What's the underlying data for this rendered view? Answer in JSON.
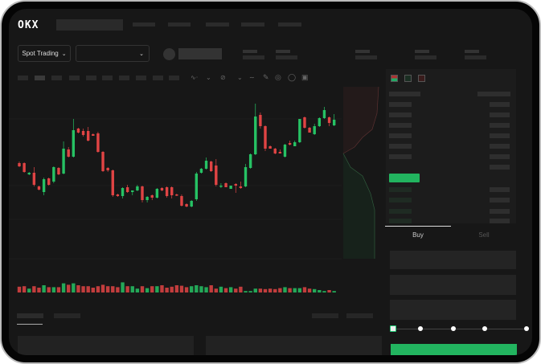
{
  "header": {
    "logo": "OKX",
    "nav_items": [
      "",
      "",
      "",
      "",
      ""
    ]
  },
  "toolbar": {
    "market_type": "Spot Trading",
    "pair_selector": "",
    "chevron": "chevron-down-icon"
  },
  "orderbook": {
    "view_icons": [
      "orderbook-both-icon",
      "orderbook-bids-icon",
      "orderbook-asks-icon"
    ]
  },
  "trade_form": {
    "tabs": [
      "Buy",
      "Sell"
    ],
    "active_tab": "Buy",
    "slider_steps": [
      0,
      25,
      50,
      75,
      100
    ],
    "slider_value": 0
  },
  "colors": {
    "up": "#26c264",
    "down": "#e04444",
    "background": "#171717",
    "accent": "#22b45f"
  },
  "chart_data": {
    "type": "candlestick",
    "candles_ohlc": [
      [
        97,
        99,
        92,
        93
      ],
      [
        97,
        98,
        85,
        86
      ],
      [
        83,
        86,
        82,
        85
      ],
      [
        85,
        92,
        68,
        70
      ],
      [
        68,
        69,
        63,
        64
      ],
      [
        61,
        79,
        57,
        77
      ],
      [
        78,
        79,
        69,
        70
      ],
      [
        74,
        93,
        72,
        92
      ],
      [
        91,
        92,
        82,
        83
      ],
      [
        84,
        124,
        83,
        115
      ],
      [
        114,
        117,
        104,
        105
      ],
      [
        105,
        152,
        104,
        138
      ],
      [
        140,
        141,
        134,
        135
      ],
      [
        137,
        140,
        130,
        132
      ],
      [
        137,
        142,
        124,
        125
      ],
      [
        133,
        134,
        131,
        131
      ],
      [
        134,
        136,
        110,
        111
      ],
      [
        111,
        112,
        86,
        87
      ],
      [
        91,
        92,
        86,
        88
      ],
      [
        88,
        89,
        55,
        57
      ],
      [
        58,
        59,
        55,
        56
      ],
      [
        56,
        67,
        53,
        66
      ],
      [
        67,
        70,
        60,
        61
      ],
      [
        61,
        63,
        57,
        63
      ],
      [
        63,
        70,
        62,
        68
      ],
      [
        68,
        69,
        48,
        51
      ],
      [
        51,
        56,
        48,
        55
      ],
      [
        57,
        58,
        51,
        54
      ],
      [
        54,
        66,
        53,
        65
      ],
      [
        66,
        67,
        62,
        63
      ],
      [
        67,
        68,
        54,
        56
      ],
      [
        67,
        68,
        53,
        57
      ],
      [
        58,
        59,
        56,
        57
      ],
      [
        56,
        58,
        43,
        44
      ],
      [
        46,
        47,
        42,
        43
      ],
      [
        43,
        51,
        42,
        50
      ],
      [
        52,
        86,
        50,
        84
      ],
      [
        85,
        91,
        84,
        90
      ],
      [
        90,
        104,
        89,
        100
      ],
      [
        99,
        100,
        86,
        87
      ],
      [
        94,
        102,
        68,
        70
      ],
      [
        68,
        72,
        66,
        69
      ],
      [
        72,
        73,
        67,
        67
      ],
      [
        65,
        69,
        65,
        69
      ],
      [
        71,
        72,
        60,
        69
      ],
      [
        68,
        74,
        65,
        66
      ],
      [
        68,
        96,
        67,
        92
      ],
      [
        91,
        109,
        90,
        108
      ],
      [
        108,
        171,
        107,
        155
      ],
      [
        157,
        160,
        140,
        143
      ],
      [
        143,
        144,
        112,
        115
      ],
      [
        118,
        119,
        115,
        115
      ],
      [
        115,
        116,
        108,
        109
      ],
      [
        111,
        114,
        109,
        109
      ],
      [
        105,
        121,
        104,
        120
      ],
      [
        122,
        125,
        119,
        120
      ],
      [
        118,
        125,
        118,
        123
      ],
      [
        123,
        152,
        122,
        152
      ],
      [
        154,
        155,
        140,
        141
      ],
      [
        141,
        142,
        135,
        135
      ],
      [
        133,
        146,
        132,
        143
      ],
      [
        143,
        154,
        142,
        153
      ],
      [
        153,
        167,
        152,
        163
      ],
      [
        154,
        155,
        143,
        147
      ],
      [
        144,
        158,
        143,
        151
      ]
    ],
    "volumes": [
      12,
      13,
      8,
      13,
      10,
      15,
      11,
      11,
      11,
      19,
      16,
      19,
      15,
      13,
      13,
      10,
      13,
      16,
      13,
      13,
      11,
      21,
      13,
      13,
      8,
      13,
      9,
      13,
      13,
      15,
      10,
      12,
      15,
      14,
      11,
      13,
      15,
      13,
      11,
      15,
      8,
      12,
      9,
      11,
      8,
      12,
      3,
      3,
      8,
      8,
      7,
      8,
      7,
      9,
      11,
      9,
      9,
      9,
      11,
      8,
      7,
      5,
      3,
      5,
      3
    ]
  }
}
